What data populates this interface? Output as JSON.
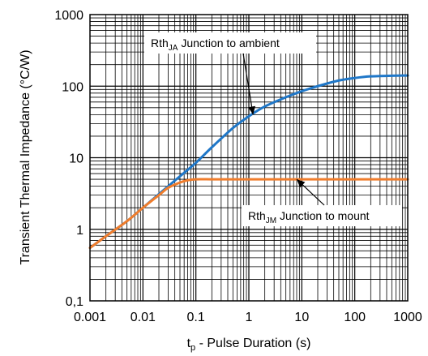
{
  "chart_data": {
    "type": "line",
    "x_scale": "log",
    "y_scale": "log",
    "xlim": [
      0.001,
      1000
    ],
    "ylim": [
      0.1,
      1000
    ],
    "grid": true,
    "x_ticks": [
      "0.001",
      "0.01",
      "0.1",
      "1",
      "10",
      "100",
      "1000"
    ],
    "y_ticks": [
      "0,1",
      "1",
      "10",
      "100",
      "1000"
    ],
    "xlabel": {
      "main": "t",
      "sub": "p",
      "rest": " - Pulse Duration (s)"
    },
    "ylabel": "Transient Thermal Impedance (°C/W)",
    "series": [
      {
        "name": "Rth_JA Junction to ambient",
        "color": "#1f77c8",
        "x": [
          0.001,
          0.002,
          0.005,
          0.01,
          0.02,
          0.05,
          0.1,
          0.2,
          0.5,
          1,
          2,
          5,
          10,
          20,
          50,
          100,
          200,
          500,
          1000
        ],
        "y": [
          0.55,
          0.8,
          1.3,
          2.0,
          3.1,
          5.5,
          8.5,
          14,
          26,
          38,
          52,
          70,
          85,
          100,
          120,
          130,
          137,
          140,
          141
        ]
      },
      {
        "name": "Rth_JM Junction to mount",
        "color": "#f07d2c",
        "x": [
          0.001,
          0.002,
          0.005,
          0.01,
          0.02,
          0.03,
          0.05,
          0.07,
          0.1,
          0.2,
          0.5,
          1,
          10,
          100,
          1000
        ],
        "y": [
          0.55,
          0.8,
          1.3,
          2.0,
          3.0,
          3.8,
          4.5,
          4.85,
          5.0,
          5.0,
          5.0,
          5.0,
          5.0,
          5.0,
          5.0
        ]
      }
    ],
    "annotations": [
      {
        "main": "Rth",
        "sub": "JA",
        "rest": " Junction to ambient",
        "arrow_to": [
          1.2,
          40
        ]
      },
      {
        "main": "Rth",
        "sub": "JM",
        "rest": " Junction to mount",
        "arrow_to": [
          8,
          5
        ]
      }
    ]
  }
}
